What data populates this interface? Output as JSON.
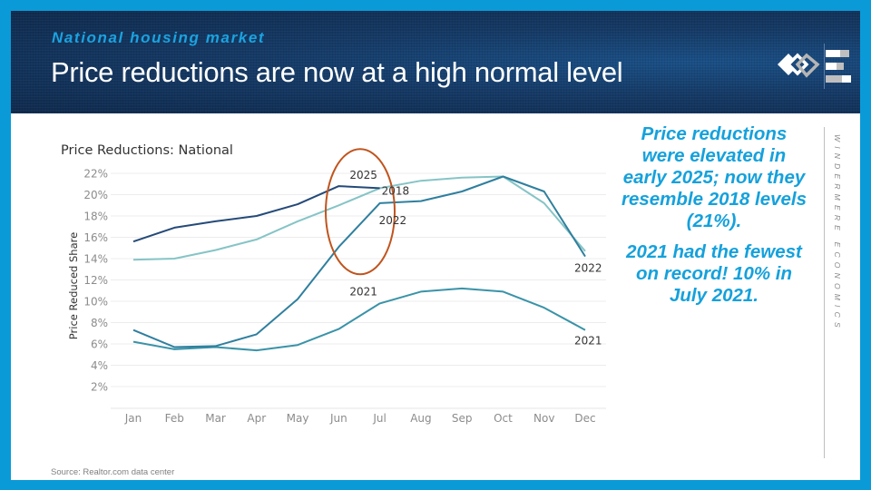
{
  "header": {
    "kicker": "National housing market",
    "title": "Price reductions are now at a high normal level",
    "logo_icon": "windermere-logo-icon",
    "logo_e_icon": "windermere-economics-e-icon"
  },
  "callout": {
    "paragraph1": "Price reductions were elevated in early 2025; now they resemble 2018 levels (21%).",
    "paragraph2": "2021 had the fewest on record! 10% in July 2021."
  },
  "side_brand": "WINDERMERE ECONOMICS",
  "source": "Source: Realtor.com data center",
  "colors": {
    "frame": "#0a9ad7",
    "kicker": "#1aa3e0",
    "callout": "#15a1dc",
    "highlight_ellipse": "#c0541e"
  },
  "chart_data": {
    "type": "line",
    "title": "Price Reductions: National",
    "xlabel": "",
    "ylabel": "Price Reduced Share",
    "categories": [
      "Jan",
      "Feb",
      "Mar",
      "Apr",
      "May",
      "Jun",
      "Jul",
      "Aug",
      "Sep",
      "Oct",
      "Nov",
      "Dec"
    ],
    "yticks": [
      "2%",
      "4%",
      "6%",
      "8%",
      "10%",
      "12%",
      "14%",
      "16%",
      "18%",
      "20%",
      "22%"
    ],
    "ytick_values": [
      2,
      4,
      6,
      8,
      10,
      12,
      14,
      16,
      18,
      20,
      22
    ],
    "ylim": [
      0,
      22
    ],
    "grid": true,
    "legend": "none (inline line labels)",
    "series": [
      {
        "name": "2018",
        "color": "#86c4c6",
        "values": [
          13.9,
          14.0,
          14.8,
          15.8,
          17.5,
          19.0,
          20.6,
          21.3,
          21.6,
          21.7,
          19.2,
          14.7
        ]
      },
      {
        "name": "2021",
        "color": "#3a93a8",
        "values": [
          6.2,
          5.5,
          5.7,
          5.4,
          5.9,
          7.4,
          9.8,
          10.9,
          11.2,
          10.9,
          9.4,
          7.3
        ]
      },
      {
        "name": "2022",
        "color": "#2f7f9e",
        "values": [
          7.3,
          5.7,
          5.8,
          6.9,
          10.2,
          15.1,
          19.2,
          19.4,
          20.3,
          21.7,
          20.3,
          14.2
        ]
      },
      {
        "name": "2025",
        "color": "#254a78",
        "values": [
          15.6,
          16.9,
          17.5,
          18.0,
          19.1,
          20.8,
          20.6,
          null,
          null,
          null,
          null,
          null
        ]
      }
    ],
    "annotations": [
      {
        "text": "2025",
        "at": "Jun-Jul, 2025 line"
      },
      {
        "text": "2018",
        "at": "Jul, 2018 line"
      },
      {
        "text": "2022",
        "at": "Jul, below 2022 line"
      },
      {
        "text": "2021",
        "at": "Jun-Jul, above 2021 line"
      },
      {
        "text": "2022",
        "at": "Dec end of 2022 line"
      },
      {
        "text": "2021",
        "at": "Dec end of 2021 line"
      },
      {
        "text": "",
        "type": "ellipse highlight",
        "at": "Jun-Jul, 13%-23%"
      }
    ]
  }
}
